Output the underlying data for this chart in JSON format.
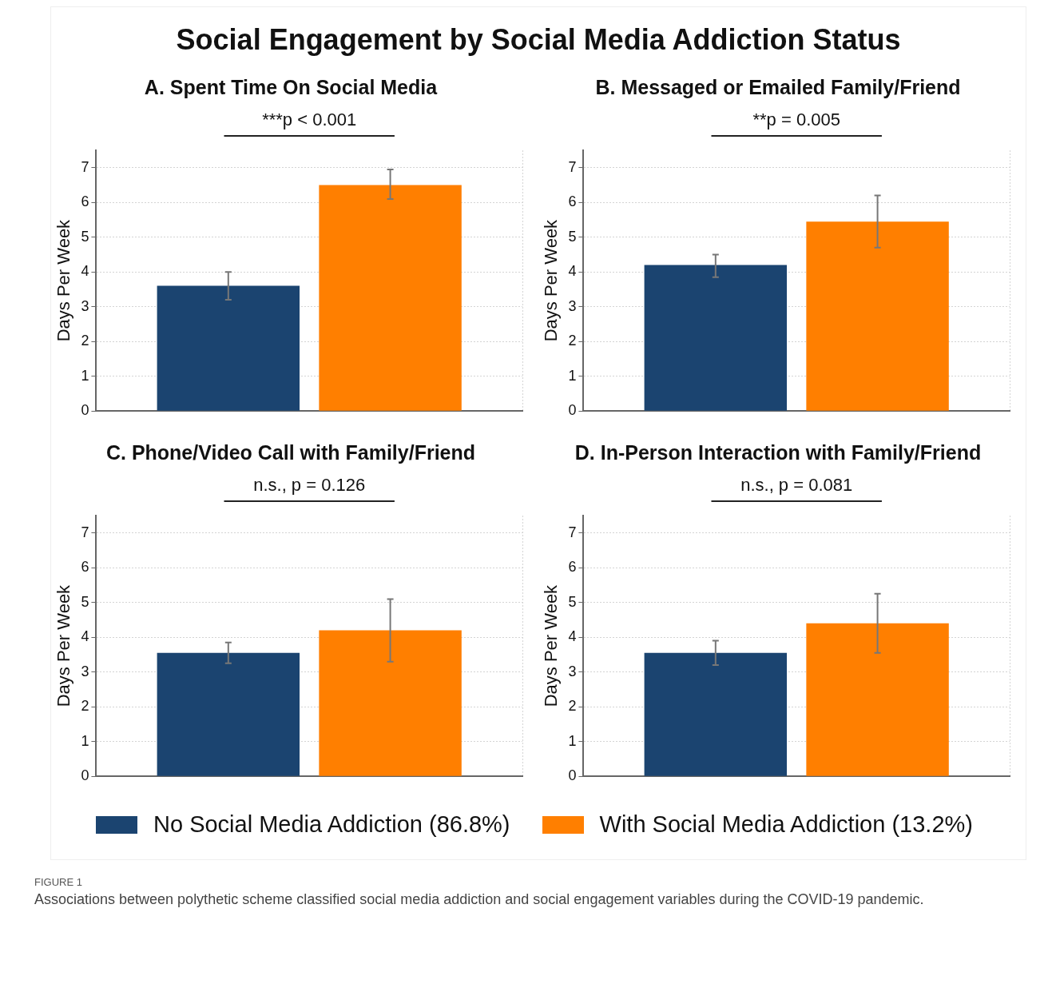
{
  "chart_data": [
    {
      "type": "other",
      "title": "Social Engagement by Social Media Addiction Status",
      "annotations": [
        "FIGURE 1",
        "Associations between polythetic scheme classified social media addiction and social engagement variables during the COVID-19 pandemic."
      ]
    },
    {
      "type": "bar",
      "title": "A. Spent Time On Social Media",
      "ylabel": "Days Per Week",
      "categories": [
        null
      ],
      "ylim": [
        0,
        7.5
      ],
      "yticks": [
        0,
        1,
        2,
        3,
        4,
        5,
        6,
        7
      ],
      "grid": true,
      "annotations": [
        "***p < 0.001"
      ],
      "series": [
        {
          "color": "#1b4470",
          "values": [
            3.6
          ],
          "errors": [
            [
              3.2,
              4.0
            ]
          ]
        },
        {
          "color": "#ff7f00",
          "values": [
            6.5
          ],
          "errors": [
            [
              6.1,
              6.95
            ]
          ]
        }
      ]
    },
    {
      "type": "bar",
      "title": "B. Messaged or Emailed Family/Friend",
      "ylabel": "Days Per Week",
      "categories": [
        null
      ],
      "ylim": [
        0,
        7.5
      ],
      "yticks": [
        0,
        1,
        2,
        3,
        4,
        5,
        6,
        7
      ],
      "grid": true,
      "annotations": [
        "**p = 0.005"
      ],
      "series": [
        {
          "color": "#1b4470",
          "values": [
            4.2
          ],
          "errors": [
            [
              3.85,
              4.5
            ]
          ]
        },
        {
          "color": "#ff7f00",
          "values": [
            5.45
          ],
          "errors": [
            [
              4.7,
              6.2
            ]
          ]
        }
      ]
    },
    {
      "type": "bar",
      "title": "C. Phone/Video Call with Family/Friend",
      "ylabel": "Days Per Week",
      "categories": [
        null
      ],
      "ylim": [
        0,
        7.5
      ],
      "yticks": [
        0,
        1,
        2,
        3,
        4,
        5,
        6,
        7
      ],
      "grid": true,
      "annotations": [
        "n.s., p = 0.126"
      ],
      "series": [
        {
          "color": "#1b4470",
          "values": [
            3.55
          ],
          "errors": [
            [
              3.25,
              3.85
            ]
          ]
        },
        {
          "color": "#ff7f00",
          "values": [
            4.2
          ],
          "errors": [
            [
              3.3,
              5.1
            ]
          ]
        }
      ]
    },
    {
      "type": "bar",
      "title": "D. In-Person Interaction with Family/Friend",
      "ylabel": "Days Per Week",
      "categories": [
        null
      ],
      "ylim": [
        0,
        7.5
      ],
      "yticks": [
        0,
        1,
        2,
        3,
        4,
        5,
        6,
        7
      ],
      "grid": true,
      "annotations": [
        "n.s., p = 0.081"
      ],
      "legend": "bottom",
      "series": [
        {
          "name": "No Social Media Addiction (86.8%)",
          "color": "#1b4470",
          "values": [
            3.55
          ],
          "errors": [
            [
              3.2,
              3.9
            ]
          ]
        },
        {
          "name": "With Social Media Addiction (13.2%)",
          "color": "#ff7f00",
          "values": [
            4.4
          ],
          "errors": [
            [
              3.55,
              5.25
            ]
          ]
        }
      ]
    }
  ]
}
